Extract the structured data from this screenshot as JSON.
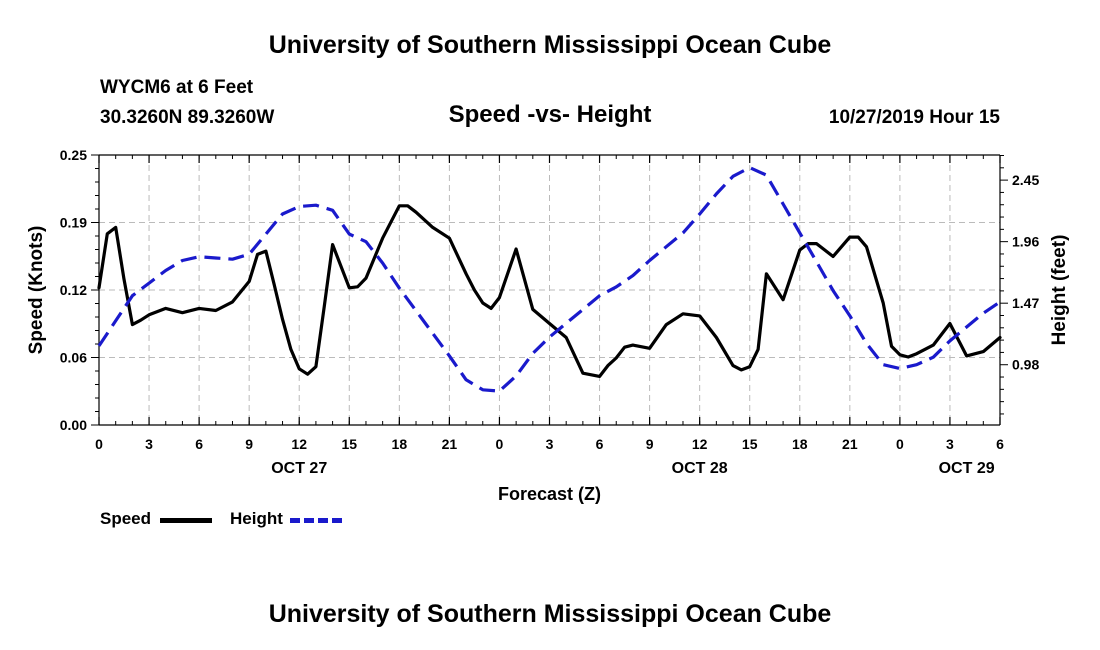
{
  "header": {
    "title": "University of Southern Mississippi Ocean Cube",
    "station": "WYCM6 at 6 Feet",
    "coords": "30.3260N 89.3260W",
    "subtitle": "Speed -vs- Height",
    "datetime": "10/27/2019 Hour 15"
  },
  "footer": {
    "title": "University of Southern Mississippi Ocean Cube"
  },
  "colors": {
    "speed": "#000000",
    "height": "#1a1acc",
    "grid": "#bbbbbb"
  },
  "chart_data": {
    "type": "line",
    "title": "Speed -vs- Height",
    "xlabel": "Forecast (Z)",
    "ylabel": "Speed (Knots)",
    "y2label": "Height (feet)",
    "x_hours_range": [
      0,
      54
    ],
    "x_ticks": [
      {
        "hour": 0,
        "label": "0"
      },
      {
        "hour": 3,
        "label": "3"
      },
      {
        "hour": 6,
        "label": "6"
      },
      {
        "hour": 9,
        "label": "9"
      },
      {
        "hour": 12,
        "label": "12"
      },
      {
        "hour": 15,
        "label": "15"
      },
      {
        "hour": 18,
        "label": "18"
      },
      {
        "hour": 21,
        "label": "21"
      },
      {
        "hour": 24,
        "label": "0"
      },
      {
        "hour": 27,
        "label": "3"
      },
      {
        "hour": 30,
        "label": "6"
      },
      {
        "hour": 33,
        "label": "9"
      },
      {
        "hour": 36,
        "label": "12"
      },
      {
        "hour": 39,
        "label": "15"
      },
      {
        "hour": 42,
        "label": "18"
      },
      {
        "hour": 45,
        "label": "21"
      },
      {
        "hour": 48,
        "label": "0"
      },
      {
        "hour": 51,
        "label": "3"
      },
      {
        "hour": 54,
        "label": "6"
      }
    ],
    "date_labels": [
      {
        "hour": 12,
        "label": "OCT 27"
      },
      {
        "hour": 36,
        "label": "OCT 28"
      },
      {
        "hour": 52,
        "label": "OCT 29"
      }
    ],
    "ylim": [
      0,
      0.25
    ],
    "y_ticks": [
      "0.00",
      "0.06",
      "0.12",
      "0.19",
      "0.25"
    ],
    "y_tick_values": [
      0,
      0.0625,
      0.125,
      0.1875,
      0.25
    ],
    "y2lim": [
      0.5,
      2.65
    ],
    "y2_ticks": [
      "0.98",
      "1.47",
      "1.96",
      "2.45"
    ],
    "y2_tick_values": [
      0.98,
      1.47,
      1.96,
      2.45
    ],
    "series": [
      {
        "name": "Speed",
        "axis": "left",
        "style": "solid",
        "legend": "Speed",
        "x": [
          0,
          0.5,
          1,
          1.5,
          2,
          2.5,
          3,
          4,
          5,
          6,
          7,
          8,
          9,
          9.5,
          10,
          10.5,
          11,
          11.5,
          12,
          12.5,
          13,
          13.5,
          14,
          15,
          15.5,
          16,
          17,
          18,
          18.5,
          19,
          20,
          21,
          22,
          22.5,
          23,
          23.5,
          24,
          25,
          26,
          27,
          28,
          29,
          30,
          30.5,
          31,
          31.5,
          32,
          33,
          34,
          35,
          36,
          37,
          38,
          38.5,
          39,
          39.5,
          40,
          41,
          42,
          42.5,
          43,
          44,
          45,
          45.5,
          46,
          47,
          47.5,
          48,
          48.5,
          49,
          50,
          51,
          52,
          53,
          54
        ],
        "y": [
          0.127,
          0.177,
          0.183,
          0.135,
          0.093,
          0.097,
          0.102,
          0.108,
          0.104,
          0.108,
          0.106,
          0.114,
          0.133,
          0.158,
          0.161,
          0.13,
          0.098,
          0.07,
          0.052,
          0.047,
          0.054,
          0.11,
          0.167,
          0.127,
          0.128,
          0.136,
          0.173,
          0.203,
          0.203,
          0.197,
          0.183,
          0.173,
          0.14,
          0.125,
          0.113,
          0.108,
          0.118,
          0.163,
          0.107,
          0.094,
          0.081,
          0.048,
          0.045,
          0.055,
          0.062,
          0.072,
          0.074,
          0.071,
          0.093,
          0.103,
          0.101,
          0.081,
          0.055,
          0.051,
          0.054,
          0.07,
          0.14,
          0.116,
          0.162,
          0.168,
          0.168,
          0.156,
          0.174,
          0.174,
          0.165,
          0.113,
          0.073,
          0.065,
          0.063,
          0.066,
          0.074,
          0.094,
          0.064,
          0.068,
          0.081
        ]
      },
      {
        "name": "Height",
        "axis": "right",
        "style": "dashed",
        "legend": "Height",
        "x": [
          0,
          1,
          2,
          3,
          4,
          5,
          6,
          7,
          8,
          9,
          10,
          11,
          12,
          13,
          14,
          15,
          16,
          17,
          18,
          19,
          20,
          21,
          22,
          23,
          24,
          25,
          26,
          27,
          28,
          29,
          30,
          31,
          32,
          33,
          34,
          35,
          36,
          37,
          38,
          39,
          40,
          41,
          42,
          43,
          44,
          45,
          46,
          47,
          48,
          49,
          50,
          51,
          52,
          53,
          54
        ],
        "y": [
          1.13,
          1.33,
          1.53,
          1.63,
          1.73,
          1.81,
          1.84,
          1.83,
          1.82,
          1.86,
          2.02,
          2.18,
          2.24,
          2.25,
          2.21,
          2.02,
          1.96,
          1.79,
          1.59,
          1.41,
          1.23,
          1.05,
          0.86,
          0.78,
          0.77,
          0.89,
          1.07,
          1.2,
          1.31,
          1.42,
          1.53,
          1.6,
          1.69,
          1.81,
          1.92,
          2.03,
          2.18,
          2.34,
          2.48,
          2.55,
          2.49,
          2.26,
          2.03,
          1.8,
          1.57,
          1.37,
          1.15,
          0.98,
          0.95,
          0.98,
          1.04,
          1.17,
          1.28,
          1.39,
          1.48
        ]
      }
    ]
  }
}
